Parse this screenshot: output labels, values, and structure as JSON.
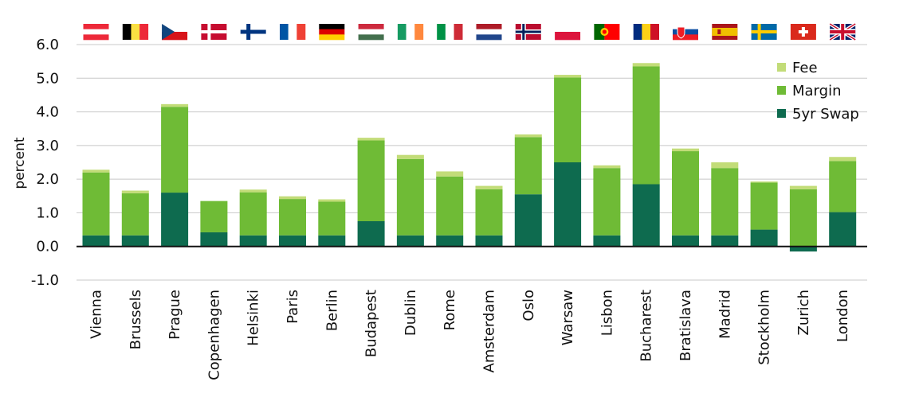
{
  "chart_data": {
    "type": "bar",
    "stacked": true,
    "categories": [
      "Vienna",
      "Brussels",
      "Prague",
      "Copenhagen",
      "Helsinki",
      "Paris",
      "Berlin",
      "Budapest",
      "Dublin",
      "Rome",
      "Amsterdam",
      "Oslo",
      "Warsaw",
      "Lisbon",
      "Bucharest",
      "Bratislava",
      "Madrid",
      "Stockholm",
      "Zurich",
      "London"
    ],
    "country_flags": [
      "Austria",
      "Belgium",
      "Czech Republic",
      "Denmark",
      "Finland",
      "France",
      "Germany",
      "Hungary",
      "Ireland",
      "Italy",
      "Netherlands",
      "Norway",
      "Poland",
      "Portugal",
      "Romania",
      "Slovakia",
      "Spain",
      "Sweden",
      "Switzerland",
      "United Kingdom"
    ],
    "series": [
      {
        "name": "5yr Swap",
        "color": "#0e6b4f",
        "values": [
          0.33,
          0.33,
          1.6,
          0.42,
          0.33,
          0.33,
          0.33,
          0.75,
          0.33,
          0.33,
          0.33,
          1.55,
          2.5,
          0.33,
          1.85,
          0.33,
          0.33,
          0.5,
          -0.15,
          1.02
        ]
      },
      {
        "name": "Margin",
        "color": "#6fbb36",
        "values": [
          1.87,
          1.25,
          2.55,
          0.93,
          1.28,
          1.08,
          1.0,
          2.4,
          2.27,
          1.75,
          1.37,
          1.7,
          2.52,
          2.0,
          3.5,
          2.5,
          2.0,
          1.4,
          1.7,
          1.52
        ]
      },
      {
        "name": "Fee",
        "color": "#c2dc78",
        "values": [
          0.08,
          0.08,
          0.08,
          0.0,
          0.08,
          0.08,
          0.07,
          0.08,
          0.12,
          0.15,
          0.1,
          0.08,
          0.08,
          0.08,
          0.1,
          0.08,
          0.17,
          0.03,
          0.1,
          0.12
        ]
      }
    ],
    "yticks": [
      "6.0",
      "5.0",
      "4.0",
      "3.0",
      "2.0",
      "1.0",
      "0.0",
      "-1.0"
    ],
    "ylabel": "percent",
    "xlabel": "",
    "title": "",
    "ylim": [
      -1.0,
      6.0
    ],
    "grid": "horizontal",
    "legend_position": "top-right",
    "legend_order": [
      "Fee",
      "Margin",
      "5yr Swap"
    ]
  }
}
